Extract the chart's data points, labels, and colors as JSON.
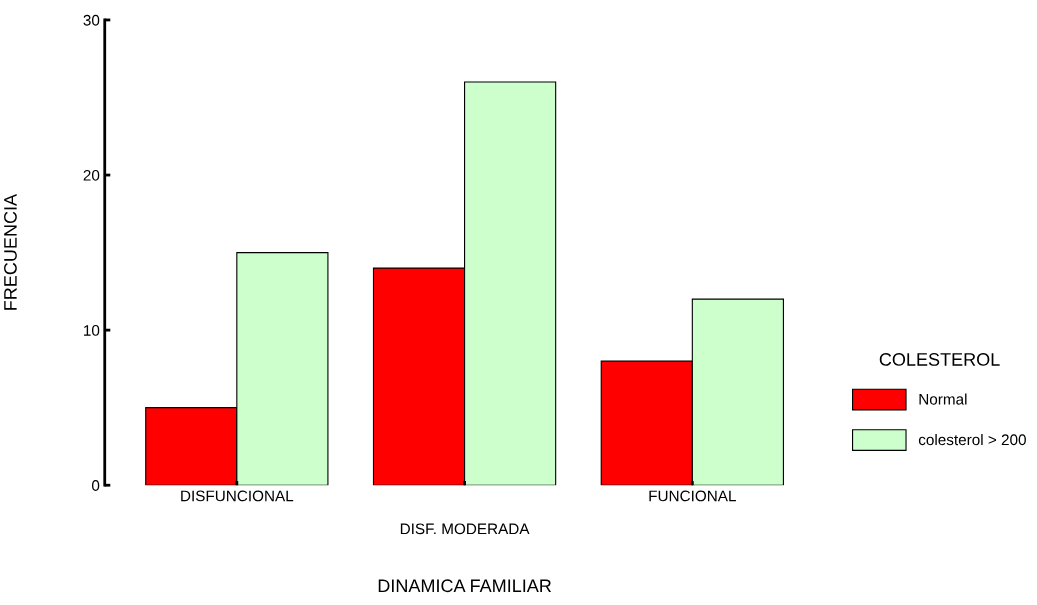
{
  "chart_data": {
    "type": "bar",
    "xlabel": "DINAMICA FAMILIAR",
    "ylabel": "FRECUENCIA",
    "legend_title": "COLESTEROL",
    "legend": "right",
    "grid": false,
    "categories": [
      "DISFUNCIONAL",
      "DISF. MODERADA",
      "FUNCIONAL"
    ],
    "series": [
      {
        "name": "Normal",
        "color": "#ff0000",
        "values": [
          5,
          14,
          8
        ]
      },
      {
        "name": "colesterol > 200",
        "color": "#ccffcc",
        "values": [
          15,
          26,
          12
        ]
      }
    ],
    "ylim": [
      0,
      30
    ],
    "yticks": [
      0,
      10,
      20,
      30
    ]
  }
}
